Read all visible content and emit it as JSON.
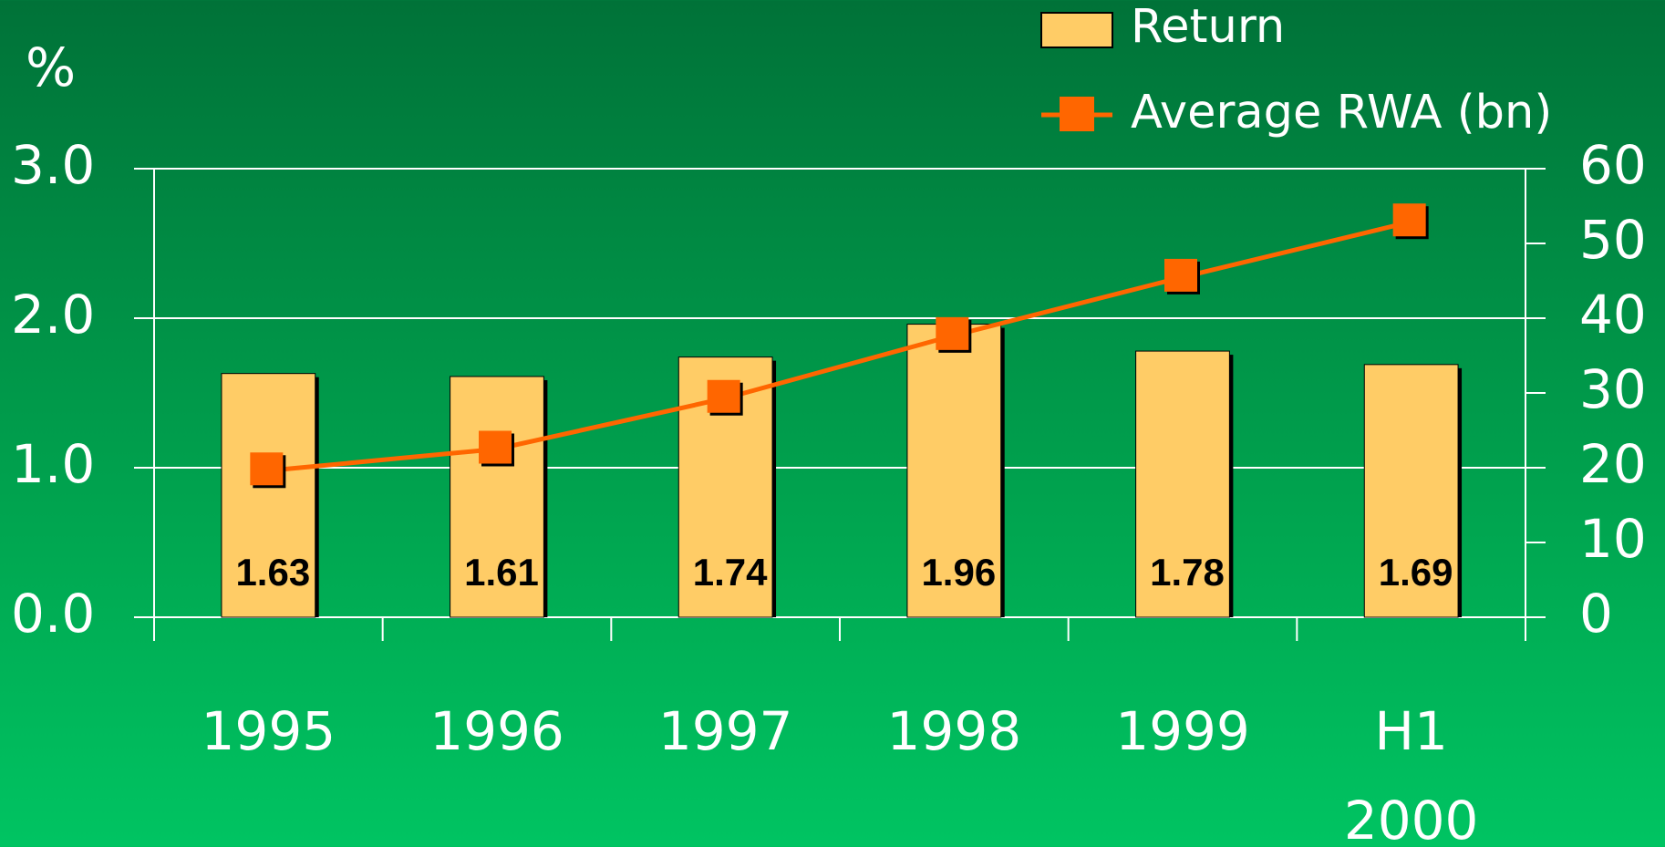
{
  "chart_data": {
    "type": "bar_line",
    "y_label": "%",
    "categories": [
      "1995",
      "1996",
      "1997",
      "1998",
      "1999",
      "H1 2000"
    ],
    "series": [
      {
        "name": "Return",
        "type": "bar",
        "color": "#ffcc66",
        "values": [
          1.63,
          1.61,
          1.74,
          1.96,
          1.78,
          1.69
        ]
      },
      {
        "name": "Average RWA (bn)",
        "type": "line",
        "axis": "y2",
        "color": "#ff6600",
        "values": [
          19.6,
          22.5,
          29.3,
          37.7,
          45.5,
          52.9
        ]
      }
    ],
    "ylim": [
      0,
      3
    ],
    "yticks": [
      {
        "value": 0,
        "label": "0.0"
      },
      {
        "value": 1,
        "label": "1.0"
      },
      {
        "value": 2,
        "label": "2.0"
      },
      {
        "value": 3,
        "label": "3.0"
      }
    ],
    "y2lim": [
      0,
      60
    ],
    "y2ticks": [
      0,
      10,
      20,
      30,
      40,
      50,
      60
    ],
    "grid": true,
    "legend": "top-right"
  }
}
